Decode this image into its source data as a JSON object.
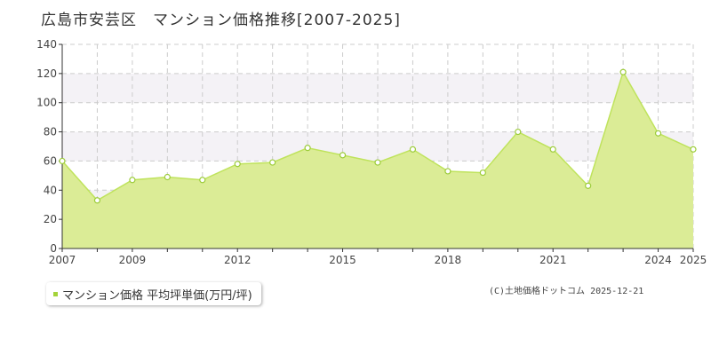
{
  "title": "広島市安芸区　マンション価格推移[2007-2025]",
  "legend_label": "マンション価格 平均坪単価(万円/坪)",
  "credit": "(C)土地価格ドットコム 2025-12-21",
  "colors": {
    "fill": "#dbec96",
    "line": "#bfe35c",
    "marker_stroke": "#9ccc3a",
    "swatch": "#a4d33a",
    "grid": "#cccccc"
  },
  "chart_data": {
    "type": "area",
    "x": [
      2007,
      2008,
      2009,
      2010,
      2011,
      2012,
      2013,
      2014,
      2015,
      2016,
      2017,
      2018,
      2019,
      2020,
      2021,
      2022,
      2023,
      2024,
      2025
    ],
    "series": [
      {
        "name": "マンション価格 平均坪単価(万円/坪)",
        "values": [
          60,
          33,
          47,
          49,
          47,
          58,
          59,
          69,
          64,
          59,
          68,
          53,
          52,
          80,
          68,
          43,
          121,
          79,
          68
        ]
      }
    ],
    "xticks": [
      "2007",
      "2009",
      "2012",
      "2015",
      "2018",
      "2021",
      "2024",
      "2025"
    ],
    "xtick_years": [
      2007,
      2009,
      2012,
      2015,
      2018,
      2021,
      2024,
      2025
    ],
    "yticks": [
      "0",
      "20",
      "40",
      "60",
      "80",
      "100",
      "120",
      "140"
    ],
    "ylim": [
      0,
      140
    ],
    "xlim": [
      2007,
      2025
    ],
    "grid": true
  }
}
